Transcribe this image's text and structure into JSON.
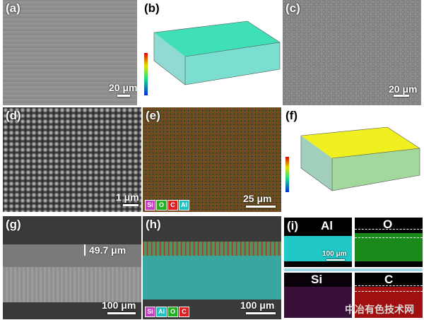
{
  "panels": {
    "a": {
      "label": "(a)",
      "scale": "20 μm"
    },
    "b": {
      "label": "(b)"
    },
    "c": {
      "label": "(c)",
      "scale": "20 μm"
    },
    "d": {
      "label": "(d)",
      "scale": "1 μm"
    },
    "e": {
      "label": "(e)",
      "scale": "25 μm",
      "legend": [
        "Si",
        "O",
        "C",
        "Al"
      ]
    },
    "f": {
      "label": "(f)"
    },
    "g": {
      "label": "(g)",
      "scale": "100 μm",
      "thickness": "49.7 μm"
    },
    "h": {
      "label": "(h)",
      "scale": "100 μm",
      "legend": [
        "Si",
        "Al",
        "O",
        "C"
      ]
    },
    "i": {
      "label": "(i)",
      "scale": "100 μm",
      "elements": [
        "Al",
        "O",
        "Si",
        "C"
      ]
    }
  },
  "colors": {
    "si": "#c040c0",
    "o": "#20b020",
    "c": "#e02020",
    "al": "#20c0c0"
  },
  "watermark": "中冶有色技术网"
}
